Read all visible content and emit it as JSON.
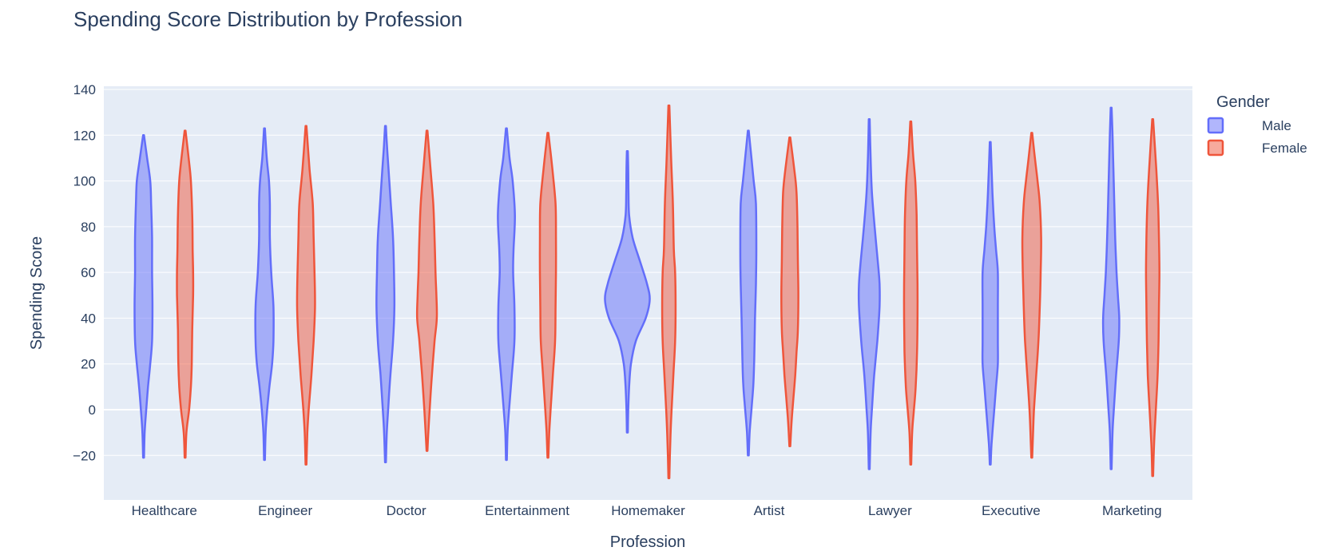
{
  "chart_data": {
    "type": "violin",
    "title": "Spending Score Distribution by Profession",
    "xlabel": "Profession",
    "ylabel": "Spending Score",
    "ylim": [
      -40,
      142
    ],
    "yticks": [
      140,
      120,
      100,
      80,
      60,
      40,
      20,
      0,
      -20
    ],
    "ytick_labels": [
      "140",
      "120",
      "100",
      "80",
      "60",
      "40",
      "20",
      "0",
      "−20"
    ],
    "grid": true,
    "legend": {
      "title": "Gender",
      "position": "top-right"
    },
    "categories": [
      "Healthcare",
      "Engineer",
      "Doctor",
      "Entertainment",
      "Homemaker",
      "Artist",
      "Lawyer",
      "Executive",
      "Marketing"
    ],
    "series": [
      {
        "name": "Male",
        "color": "#636efa",
        "fill": "rgba(99,110,250,0.5)",
        "violins": [
          {
            "min": -21,
            "max": 120,
            "profile": [
              [
                -21,
                0.02
              ],
              [
                -10,
                0.05
              ],
              [
                0,
                0.12
              ],
              [
                10,
                0.2
              ],
              [
                20,
                0.3
              ],
              [
                30,
                0.38
              ],
              [
                45,
                0.4
              ],
              [
                60,
                0.38
              ],
              [
                75,
                0.38
              ],
              [
                90,
                0.34
              ],
              [
                100,
                0.3
              ],
              [
                110,
                0.16
              ],
              [
                120,
                0.02
              ]
            ]
          },
          {
            "min": -22,
            "max": 123,
            "profile": [
              [
                -22,
                0.02
              ],
              [
                -10,
                0.05
              ],
              [
                0,
                0.12
              ],
              [
                10,
                0.22
              ],
              [
                20,
                0.34
              ],
              [
                30,
                0.4
              ],
              [
                45,
                0.4
              ],
              [
                60,
                0.3
              ],
              [
                75,
                0.24
              ],
              [
                90,
                0.24
              ],
              [
                100,
                0.2
              ],
              [
                110,
                0.1
              ],
              [
                123,
                0.02
              ]
            ]
          },
          {
            "min": -23,
            "max": 124,
            "profile": [
              [
                -23,
                0.02
              ],
              [
                -10,
                0.06
              ],
              [
                0,
                0.12
              ],
              [
                15,
                0.22
              ],
              [
                30,
                0.34
              ],
              [
                45,
                0.4
              ],
              [
                60,
                0.38
              ],
              [
                75,
                0.34
              ],
              [
                90,
                0.24
              ],
              [
                105,
                0.14
              ],
              [
                115,
                0.07
              ],
              [
                124,
                0.02
              ]
            ]
          },
          {
            "min": -22,
            "max": 123,
            "profile": [
              [
                -22,
                0.02
              ],
              [
                -10,
                0.05
              ],
              [
                0,
                0.12
              ],
              [
                15,
                0.24
              ],
              [
                30,
                0.36
              ],
              [
                45,
                0.36
              ],
              [
                60,
                0.3
              ],
              [
                70,
                0.32
              ],
              [
                85,
                0.38
              ],
              [
                100,
                0.28
              ],
              [
                110,
                0.14
              ],
              [
                123,
                0.02
              ]
            ]
          },
          {
            "min": -10,
            "max": 113,
            "profile": [
              [
                -10,
                0.02
              ],
              [
                0,
                0.04
              ],
              [
                10,
                0.08
              ],
              [
                20,
                0.16
              ],
              [
                30,
                0.38
              ],
              [
                40,
                0.82
              ],
              [
                48,
                1.0
              ],
              [
                55,
                0.88
              ],
              [
                65,
                0.56
              ],
              [
                75,
                0.24
              ],
              [
                85,
                0.08
              ],
              [
                95,
                0.05
              ],
              [
                105,
                0.04
              ],
              [
                113,
                0.02
              ]
            ]
          },
          {
            "min": -20,
            "max": 122,
            "profile": [
              [
                -20,
                0.02
              ],
              [
                -10,
                0.06
              ],
              [
                0,
                0.14
              ],
              [
                10,
                0.22
              ],
              [
                20,
                0.26
              ],
              [
                30,
                0.28
              ],
              [
                40,
                0.3
              ],
              [
                55,
                0.34
              ],
              [
                70,
                0.36
              ],
              [
                90,
                0.34
              ],
              [
                100,
                0.24
              ],
              [
                110,
                0.14
              ],
              [
                122,
                0.02
              ]
            ]
          },
          {
            "min": -26,
            "max": 127,
            "profile": [
              [
                -26,
                0.02
              ],
              [
                -10,
                0.06
              ],
              [
                0,
                0.12
              ],
              [
                15,
                0.22
              ],
              [
                30,
                0.36
              ],
              [
                45,
                0.46
              ],
              [
                55,
                0.46
              ],
              [
                65,
                0.38
              ],
              [
                80,
                0.24
              ],
              [
                95,
                0.12
              ],
              [
                110,
                0.06
              ],
              [
                127,
                0.02
              ]
            ]
          },
          {
            "min": -24,
            "max": 117,
            "profile": [
              [
                -24,
                0.02
              ],
              [
                -15,
                0.06
              ],
              [
                0,
                0.18
              ],
              [
                10,
                0.26
              ],
              [
                20,
                0.34
              ],
              [
                30,
                0.34
              ],
              [
                45,
                0.34
              ],
              [
                60,
                0.34
              ],
              [
                70,
                0.26
              ],
              [
                80,
                0.18
              ],
              [
                95,
                0.1
              ],
              [
                117,
                0.02
              ]
            ]
          },
          {
            "min": -26,
            "max": 132,
            "profile": [
              [
                -26,
                0.02
              ],
              [
                -10,
                0.06
              ],
              [
                0,
                0.12
              ],
              [
                15,
                0.22
              ],
              [
                30,
                0.34
              ],
              [
                40,
                0.36
              ],
              [
                50,
                0.3
              ],
              [
                60,
                0.24
              ],
              [
                75,
                0.18
              ],
              [
                90,
                0.14
              ],
              [
                105,
                0.1
              ],
              [
                120,
                0.06
              ],
              [
                132,
                0.02
              ]
            ]
          }
        ]
      },
      {
        "name": "Female",
        "color": "#ef553b",
        "fill": "rgba(239,85,59,0.5)",
        "violins": [
          {
            "min": -21,
            "max": 122,
            "profile": [
              [
                -21,
                0.02
              ],
              [
                -10,
                0.06
              ],
              [
                0,
                0.18
              ],
              [
                10,
                0.26
              ],
              [
                20,
                0.3
              ],
              [
                35,
                0.32
              ],
              [
                50,
                0.36
              ],
              [
                60,
                0.36
              ],
              [
                70,
                0.34
              ],
              [
                85,
                0.32
              ],
              [
                100,
                0.26
              ],
              [
                110,
                0.16
              ],
              [
                122,
                0.02
              ]
            ]
          },
          {
            "min": -24,
            "max": 124,
            "profile": [
              [
                -24,
                0.02
              ],
              [
                -10,
                0.06
              ],
              [
                0,
                0.12
              ],
              [
                15,
                0.24
              ],
              [
                30,
                0.34
              ],
              [
                45,
                0.4
              ],
              [
                60,
                0.38
              ],
              [
                75,
                0.34
              ],
              [
                90,
                0.3
              ],
              [
                105,
                0.16
              ],
              [
                124,
                0.02
              ]
            ]
          },
          {
            "min": -18,
            "max": 122,
            "profile": [
              [
                -18,
                0.02
              ],
              [
                -10,
                0.06
              ],
              [
                0,
                0.12
              ],
              [
                15,
                0.22
              ],
              [
                30,
                0.34
              ],
              [
                40,
                0.44
              ],
              [
                50,
                0.42
              ],
              [
                60,
                0.38
              ],
              [
                75,
                0.34
              ],
              [
                90,
                0.28
              ],
              [
                105,
                0.16
              ],
              [
                122,
                0.02
              ]
            ]
          },
          {
            "min": -21,
            "max": 121,
            "profile": [
              [
                -21,
                0.02
              ],
              [
                -10,
                0.06
              ],
              [
                0,
                0.12
              ],
              [
                15,
                0.22
              ],
              [
                30,
                0.32
              ],
              [
                45,
                0.34
              ],
              [
                60,
                0.36
              ],
              [
                75,
                0.36
              ],
              [
                90,
                0.34
              ],
              [
                105,
                0.2
              ],
              [
                121,
                0.02
              ]
            ]
          },
          {
            "min": -30,
            "max": 133,
            "profile": [
              [
                -30,
                0.02
              ],
              [
                -15,
                0.06
              ],
              [
                0,
                0.12
              ],
              [
                15,
                0.2
              ],
              [
                30,
                0.28
              ],
              [
                45,
                0.3
              ],
              [
                60,
                0.28
              ],
              [
                70,
                0.22
              ],
              [
                90,
                0.18
              ],
              [
                110,
                0.1
              ],
              [
                133,
                0.02
              ]
            ]
          },
          {
            "min": -16,
            "max": 119,
            "profile": [
              [
                -16,
                0.02
              ],
              [
                -5,
                0.08
              ],
              [
                5,
                0.16
              ],
              [
                15,
                0.24
              ],
              [
                25,
                0.3
              ],
              [
                35,
                0.36
              ],
              [
                50,
                0.38
              ],
              [
                65,
                0.36
              ],
              [
                80,
                0.34
              ],
              [
                95,
                0.3
              ],
              [
                105,
                0.2
              ],
              [
                119,
                0.02
              ]
            ]
          },
          {
            "min": -24,
            "max": 126,
            "profile": [
              [
                -24,
                0.02
              ],
              [
                -10,
                0.06
              ],
              [
                0,
                0.14
              ],
              [
                10,
                0.22
              ],
              [
                25,
                0.28
              ],
              [
                40,
                0.3
              ],
              [
                55,
                0.3
              ],
              [
                70,
                0.28
              ],
              [
                85,
                0.26
              ],
              [
                100,
                0.2
              ],
              [
                112,
                0.1
              ],
              [
                126,
                0.02
              ]
            ]
          },
          {
            "min": -21,
            "max": 121,
            "profile": [
              [
                -21,
                0.02
              ],
              [
                -10,
                0.06
              ],
              [
                0,
                0.1
              ],
              [
                15,
                0.2
              ],
              [
                30,
                0.3
              ],
              [
                45,
                0.36
              ],
              [
                60,
                0.4
              ],
              [
                75,
                0.42
              ],
              [
                90,
                0.36
              ],
              [
                100,
                0.26
              ],
              [
                110,
                0.14
              ],
              [
                121,
                0.02
              ]
            ]
          },
          {
            "min": -29,
            "max": 127,
            "profile": [
              [
                -29,
                0.02
              ],
              [
                -15,
                0.06
              ],
              [
                0,
                0.14
              ],
              [
                15,
                0.22
              ],
              [
                30,
                0.26
              ],
              [
                45,
                0.28
              ],
              [
                60,
                0.3
              ],
              [
                75,
                0.28
              ],
              [
                90,
                0.24
              ],
              [
                105,
                0.16
              ],
              [
                127,
                0.02
              ]
            ]
          }
        ]
      }
    ]
  }
}
